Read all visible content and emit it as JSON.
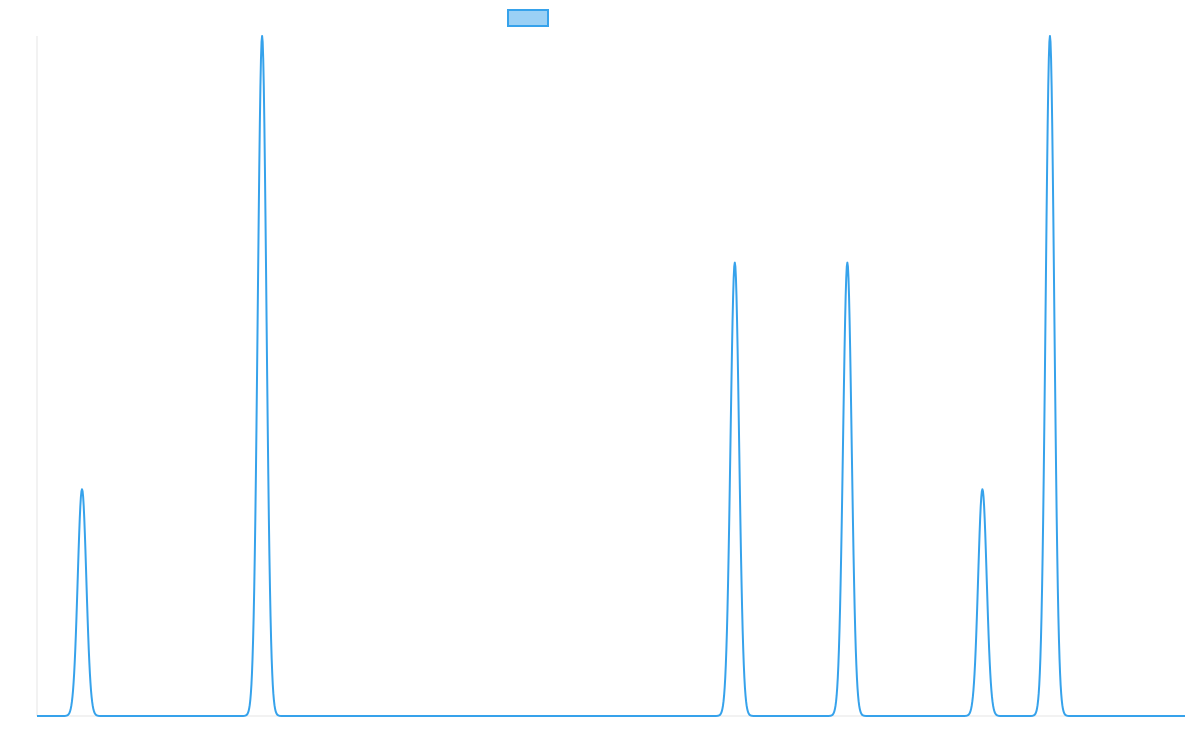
{
  "chart_data": {
    "type": "line",
    "title": "",
    "xlabel": "",
    "ylabel": "",
    "grid": false,
    "legend": "top-center",
    "xlim": [
      0,
      51
    ],
    "ylim": [
      0,
      3
    ],
    "x": [
      0,
      1,
      2,
      3,
      4,
      5,
      6,
      7,
      8,
      9,
      10,
      11,
      12,
      13,
      14,
      15,
      16,
      17,
      18,
      19,
      20,
      21,
      22,
      23,
      24,
      25,
      26,
      27,
      28,
      29,
      30,
      31,
      32,
      33,
      34,
      35,
      36,
      37,
      38,
      39,
      40,
      41,
      42,
      43,
      44,
      45,
      46,
      47,
      48,
      49,
      50,
      51
    ],
    "series": [
      {
        "values": [
          0,
          0,
          1,
          0,
          0,
          0,
          0,
          0,
          0,
          0,
          3,
          0,
          0,
          0,
          0,
          0,
          0,
          0,
          0,
          0,
          0,
          0,
          0,
          0,
          0,
          0,
          0,
          0,
          0,
          0,
          0,
          2,
          0,
          0,
          0,
          0,
          2,
          0,
          0,
          0,
          0,
          0,
          1,
          0,
          0,
          3,
          0,
          0,
          0,
          0,
          0,
          0
        ],
        "color": "#36a2eb",
        "fill": "#9ad0f5"
      }
    ]
  }
}
